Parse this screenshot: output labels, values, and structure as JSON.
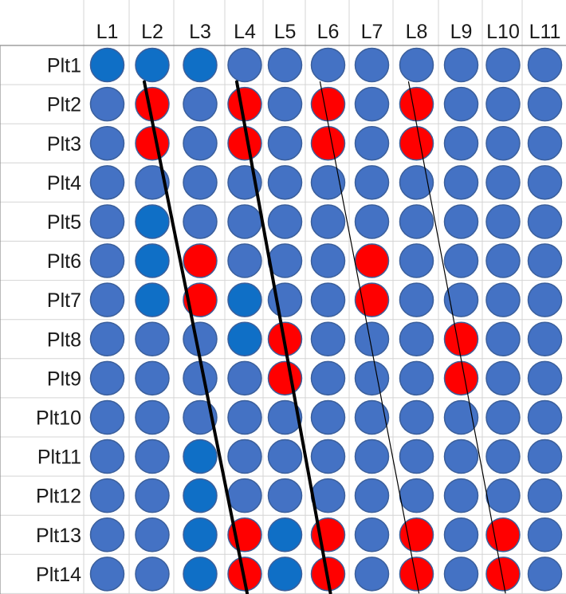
{
  "columns": [
    "L1",
    "L2",
    "L3",
    "L4",
    "L5",
    "L6",
    "L7",
    "L8",
    "L9",
    "L10",
    "L11"
  ],
  "rows": [
    "Plt1",
    "Plt2",
    "Plt3",
    "Plt4",
    "Plt5",
    "Plt6",
    "Plt7",
    "Plt8",
    "Plt9",
    "Plt10",
    "Plt11",
    "Plt12",
    "Plt13",
    "Plt14"
  ],
  "colors": {
    "blue": "#4472c4",
    "dark_blue": "#0f6fc6",
    "red": "#ff0000"
  },
  "cells": [
    [
      "D",
      "D",
      "D",
      "B",
      "B",
      "B",
      "B",
      "B",
      "B",
      "B",
      "B"
    ],
    [
      "B",
      "R",
      "B",
      "R",
      "B",
      "R",
      "B",
      "R",
      "B",
      "B",
      "B"
    ],
    [
      "B",
      "R",
      "B",
      "R",
      "B",
      "R",
      "B",
      "R",
      "B",
      "B",
      "B"
    ],
    [
      "B",
      "B",
      "B",
      "B",
      "B",
      "B",
      "B",
      "B",
      "B",
      "B",
      "B"
    ],
    [
      "B",
      "D",
      "B",
      "B",
      "B",
      "B",
      "B",
      "B",
      "B",
      "B",
      "B"
    ],
    [
      "B",
      "D",
      "R",
      "B",
      "B",
      "B",
      "R",
      "B",
      "B",
      "B",
      "B"
    ],
    [
      "B",
      "D",
      "R",
      "D",
      "B",
      "B",
      "R",
      "B",
      "B",
      "B",
      "B"
    ],
    [
      "B",
      "B",
      "B",
      "D",
      "R",
      "B",
      "B",
      "B",
      "R",
      "B",
      "B"
    ],
    [
      "B",
      "B",
      "B",
      "B",
      "R",
      "B",
      "B",
      "B",
      "R",
      "B",
      "B"
    ],
    [
      "B",
      "B",
      "B",
      "B",
      "B",
      "B",
      "B",
      "B",
      "B",
      "B",
      "B"
    ],
    [
      "B",
      "B",
      "D",
      "B",
      "B",
      "B",
      "B",
      "B",
      "B",
      "B",
      "B"
    ],
    [
      "B",
      "B",
      "D",
      "B",
      "B",
      "B",
      "B",
      "B",
      "B",
      "B",
      "B"
    ],
    [
      "B",
      "B",
      "D",
      "R",
      "D",
      "R",
      "B",
      "R",
      "B",
      "R",
      "B"
    ],
    [
      "B",
      "B",
      "D",
      "R",
      "D",
      "R",
      "B",
      "R",
      "B",
      "R",
      "B"
    ]
  ],
  "trend_lines": [
    {
      "from": {
        "col": "L2",
        "row": "Plt2"
      },
      "to": {
        "col": "L4",
        "row": "Plt14"
      },
      "weight": "thick"
    },
    {
      "from": {
        "col": "L4",
        "row": "Plt2"
      },
      "to": {
        "col": "L6",
        "row": "Plt14"
      },
      "weight": "thick"
    },
    {
      "from": {
        "col": "L6",
        "row": "Plt2"
      },
      "to": {
        "col": "L8",
        "row": "Plt14"
      },
      "weight": "thin"
    },
    {
      "from": {
        "col": "L8",
        "row": "Plt2"
      },
      "to": {
        "col": "L10",
        "row": "Plt14"
      },
      "weight": "thin"
    }
  ]
}
